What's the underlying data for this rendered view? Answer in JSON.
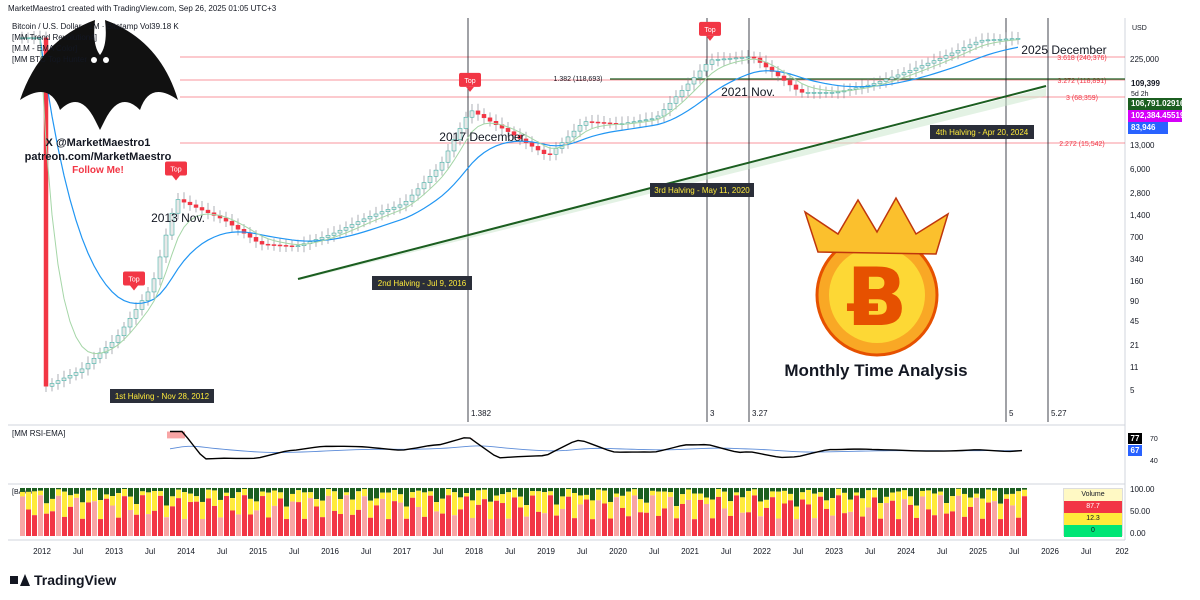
{
  "header": {
    "created": "MarketMaestro1 created with TradingView.com, Sep 26, 2025 01:05 UTC+3",
    "symbol": "Bitcoin / U.S. Dollar · 1M · Bitstamp  Vol39.18 K",
    "indicator1": "[MM Trend Revolution4]",
    "indicator2": "[M.M - EMA Color]",
    "indicator3": "[MM BTC Top Hunter"
  },
  "branding": {
    "line1": "X @MarketMaestro1",
    "line2": "patreon.com/MarketMaestro",
    "line3": "Follow Me!",
    "logo_icon": "bat-logo-icon"
  },
  "price_axis": {
    "currency": "USD",
    "ticks": [
      "225,000",
      "13,000",
      "6,000",
      "2,800",
      "1,400",
      "700",
      "340",
      "160",
      "90",
      "45",
      "21",
      "11",
      "5"
    ],
    "last_price": "109,399",
    "countdown": "5d 2h",
    "tag_green": "106,791.029166",
    "tag_magenta": "102,384.455197",
    "tag_blue": "83,946"
  },
  "fib_levels": [
    {
      "label": "3.618 (240,376)",
      "color": "#f23645"
    },
    {
      "label": "3.272 (118,891)",
      "color": "#f23645"
    },
    {
      "label": "3 (68,359)",
      "color": "#f23645"
    },
    {
      "label": "2.272 (15,542)",
      "color": "#f23645"
    },
    {
      "label": "1.382 (118,693)",
      "color": "#1b5e20"
    }
  ],
  "annotations": {
    "top": "Top",
    "peak2013": "2013 Nov.",
    "peak2017": "2017 December",
    "peak2021": "2021 Nov.",
    "peak2025": "2025 December",
    "halving1": "1st Halving - Nov 28, 2012",
    "halving2": "2nd Halving - Jul 9, 2016",
    "halving3": "3rd Halving - May 11, 2020",
    "halving4": "4th Halving - Apr 20, 2024",
    "vline1": "1.382",
    "vline2": "3",
    "vline3": "3.27",
    "vline4": "5",
    "vline5": "5.27",
    "title": "Monthly Time Analysis",
    "coin_icon": "bitcoin-crown-icon"
  },
  "rsi": {
    "label": "[MM RSI-EMA]",
    "value1": "77",
    "value2": "67",
    "ticks": [
      "70",
      "40"
    ],
    "color_rsi": "#000000",
    "color_ema": "#5b8bd8"
  },
  "volume_panel": {
    "label": "[BAMM]",
    "ticks": [
      "100.00",
      "50.00",
      "0.00"
    ],
    "box_title": "Volume",
    "box_red": "87.7",
    "box_yellow": "12.3",
    "box_green": "0"
  },
  "time_axis": [
    "2012",
    "Jul",
    "2013",
    "Jul",
    "2014",
    "Jul",
    "2015",
    "Jul",
    "2016",
    "Jul",
    "2017",
    "Jul",
    "2018",
    "Jul",
    "2019",
    "Jul",
    "2020",
    "Jul",
    "2021",
    "Jul",
    "2022",
    "Jul",
    "2023",
    "Jul",
    "2024",
    "Jul",
    "2025",
    "Jul",
    "2026",
    "Jul",
    "202"
  ],
  "footer": {
    "brand": "TradingView"
  },
  "chart_data": {
    "type": "candlestick",
    "title": "",
    "scale": "log",
    "ylim": [
      3,
      300000
    ],
    "x": [
      "2012-01",
      "2012-07",
      "2013-01",
      "2013-07",
      "2013-11",
      "2014-07",
      "2015-01",
      "2015-07",
      "2016-01",
      "2016-07",
      "2017-01",
      "2017-07",
      "2017-12",
      "2018-07",
      "2019-01",
      "2019-07",
      "2020-01",
      "2020-07",
      "2021-01",
      "2021-04",
      "2021-11",
      "2022-07",
      "2023-01",
      "2023-07",
      "2024-01",
      "2024-07",
      "2025-01",
      "2025-09"
    ],
    "close": [
      5,
      8,
      20,
      90,
      1100,
      600,
      300,
      280,
      400,
      650,
      960,
      2800,
      14000,
      7000,
      3700,
      10000,
      9300,
      11000,
      33000,
      58000,
      64000,
      23000,
      23000,
      29000,
      42000,
      64000,
      102000,
      109399
    ],
    "top_markers": [
      "2013-04",
      "2013-11",
      "2017-12",
      "2021-04"
    ]
  }
}
